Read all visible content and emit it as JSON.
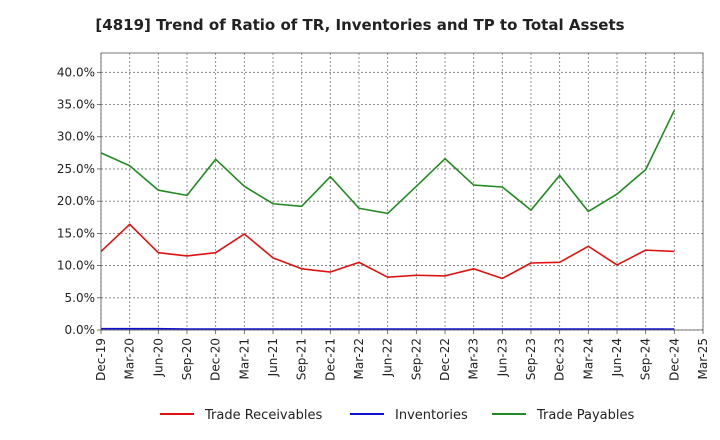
{
  "chart_data": {
    "type": "line",
    "title": "[4819]  Trend of Ratio of TR, Inventories and TP to Total Assets",
    "xlabel": "",
    "ylabel": "",
    "categories": [
      "Dec-19",
      "Mar-20",
      "Jun-20",
      "Sep-20",
      "Dec-20",
      "Mar-21",
      "Jun-21",
      "Sep-21",
      "Dec-21",
      "Mar-22",
      "Jun-22",
      "Sep-22",
      "Dec-22",
      "Mar-23",
      "Jun-23",
      "Sep-23",
      "Dec-23",
      "Mar-24",
      "Jun-24",
      "Sep-24",
      "Dec-24",
      "Mar-25"
    ],
    "y_ticks": [
      "0.0%",
      "5.0%",
      "10.0%",
      "15.0%",
      "20.0%",
      "25.0%",
      "30.0%",
      "35.0%",
      "40.0%"
    ],
    "ylim": [
      0,
      43
    ],
    "grid": true,
    "legend_position": "bottom",
    "series": [
      {
        "name": "Trade Receivables",
        "color": "#e01010",
        "values": [
          12.2,
          16.4,
          12.0,
          11.5,
          12.0,
          14.9,
          11.2,
          9.5,
          9.0,
          10.5,
          8.2,
          8.5,
          8.4,
          9.5,
          8.0,
          10.4,
          10.5,
          13.0,
          10.1,
          12.4,
          12.2,
          null
        ]
      },
      {
        "name": "Inventories",
        "color": "#1010d0",
        "values": [
          0.2,
          0.2,
          0.2,
          0.15,
          0.15,
          0.15,
          0.15,
          0.15,
          0.15,
          0.15,
          0.15,
          0.15,
          0.15,
          0.15,
          0.15,
          0.15,
          0.15,
          0.15,
          0.15,
          0.15,
          0.15,
          null
        ]
      },
      {
        "name": "Trade Payables",
        "color": "#228b22",
        "values": [
          27.5,
          25.5,
          21.7,
          20.9,
          26.5,
          22.3,
          19.6,
          19.2,
          23.8,
          18.9,
          18.1,
          22.3,
          26.6,
          22.5,
          22.2,
          18.6,
          24.0,
          18.4,
          21.1,
          24.9,
          34.1,
          null
        ]
      }
    ]
  }
}
